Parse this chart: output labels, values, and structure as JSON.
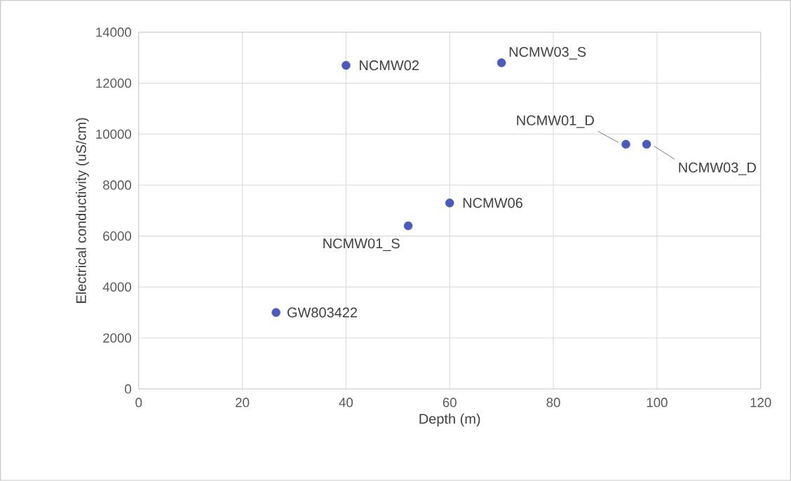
{
  "chart_data": {
    "type": "scatter",
    "xlabel": "Depth (m)",
    "ylabel": "Electrical conductivity (uS/cm)",
    "x": [
      26.5,
      40,
      70,
      94,
      98,
      60,
      52
    ],
    "values": [
      3000,
      12700,
      12800,
      9600,
      9600,
      7300,
      6400
    ],
    "color": "#4a5bbf",
    "marker": "circle",
    "grid": true,
    "xlim": [
      0,
      120
    ],
    "xticks": [
      0,
      20,
      40,
      60,
      80,
      100,
      120
    ],
    "ylim": [
      0,
      14000
    ],
    "yticks": [
      0,
      2000,
      4000,
      6000,
      8000,
      10000,
      12000,
      14000
    ],
    "annotations": [
      {
        "text": "GW803422",
        "x": 26.5,
        "y": 3000
      },
      {
        "text": "NCMW02",
        "x": 40,
        "y": 12700
      },
      {
        "text": "NCMW03_S",
        "x": 70,
        "y": 12800
      },
      {
        "text": "NCMW01_D",
        "x": 94,
        "y": 9600
      },
      {
        "text": "NCMW03_D",
        "x": 98,
        "y": 9600
      },
      {
        "text": "NCMW06",
        "x": 60,
        "y": 7300
      },
      {
        "text": "NCMW01_S",
        "x": 52,
        "y": 6400
      }
    ]
  }
}
